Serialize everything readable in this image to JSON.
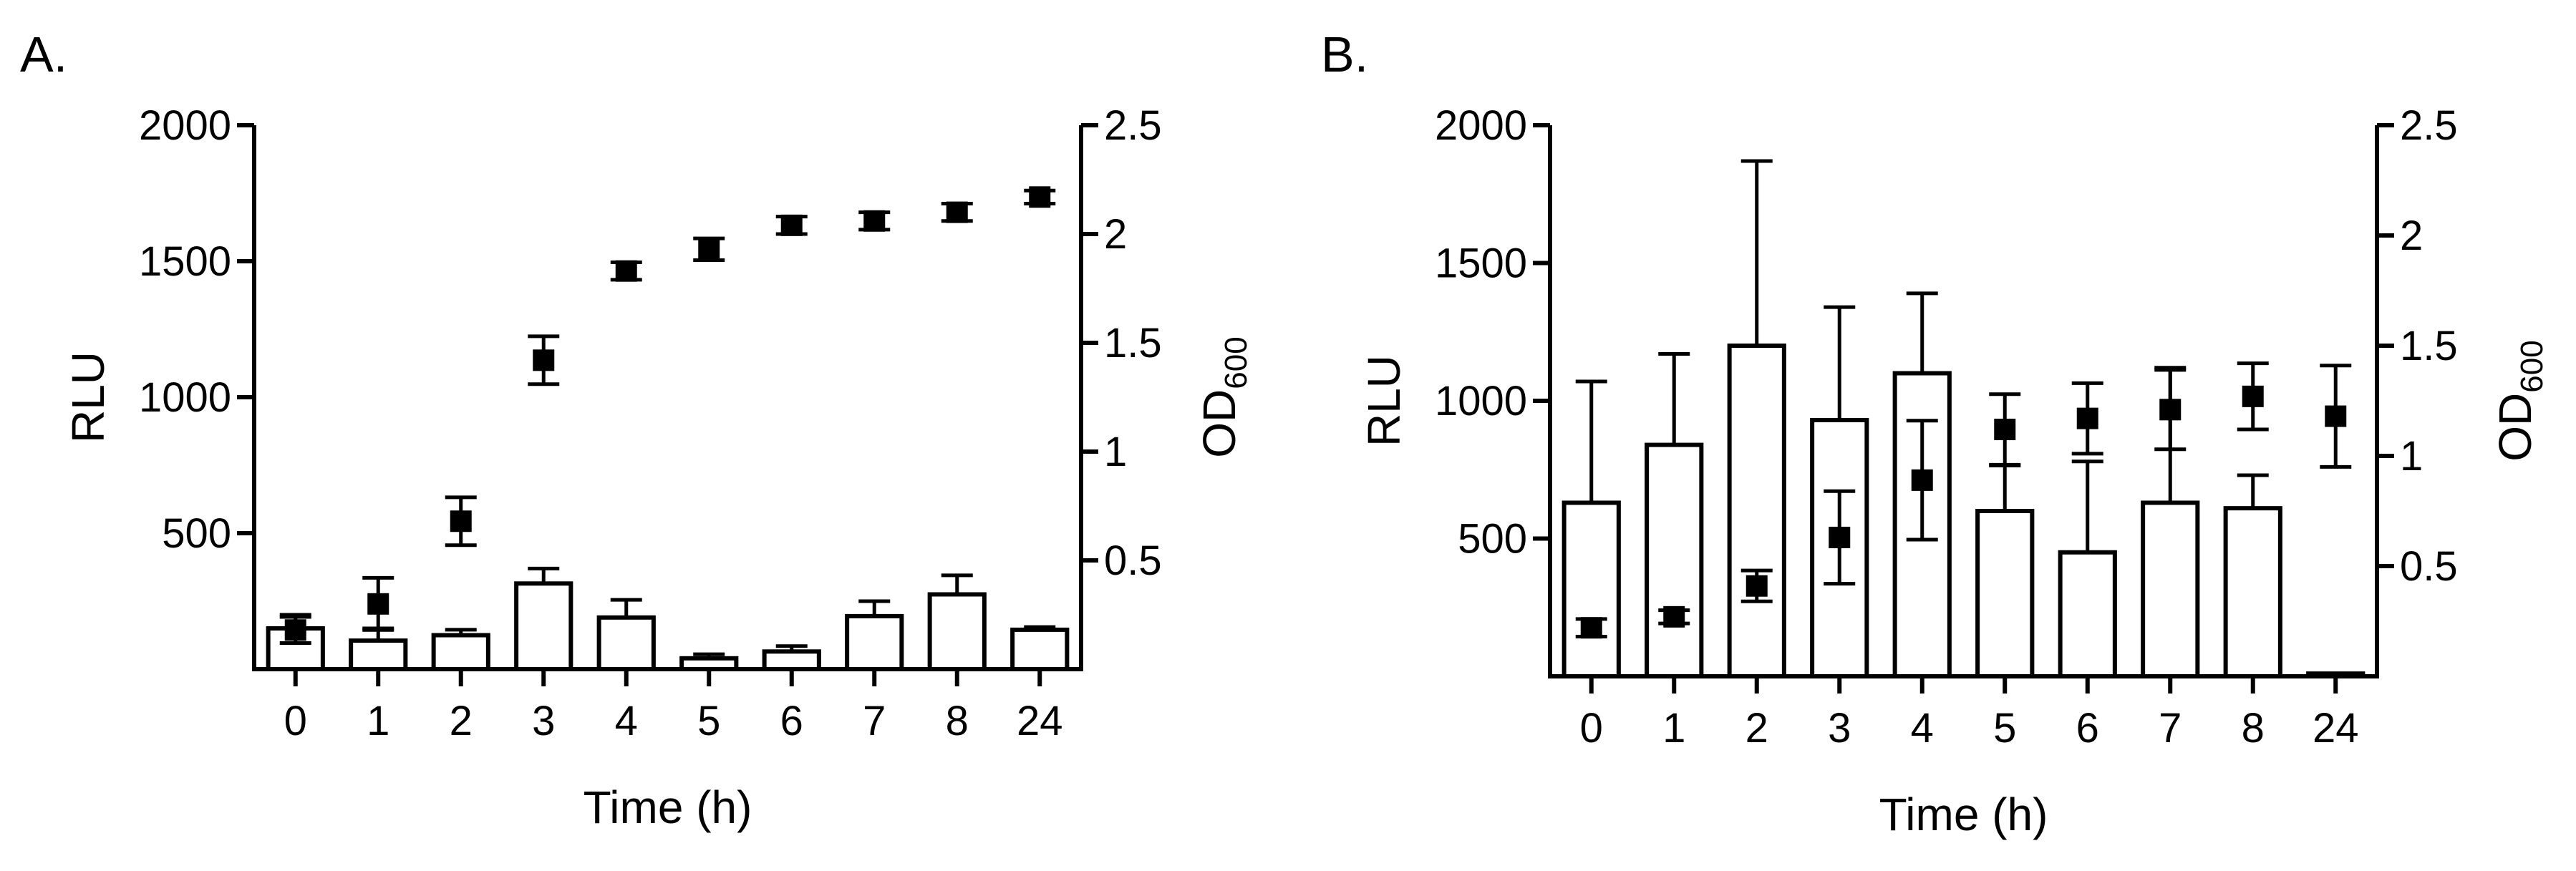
{
  "chart_data": [
    {
      "panel_label": "A.",
      "type": "bar+scatter",
      "categories": [
        "0",
        "1",
        "2",
        "3",
        "4",
        "5",
        "6",
        "7",
        "8",
        "24"
      ],
      "xlabel": "Time (h)",
      "ylabel": "RLU",
      "y2label": "OD",
      "y2label_sub": "600",
      "ylim": [
        0,
        2000
      ],
      "y2lim": [
        0,
        2.5
      ],
      "yticks": [
        500,
        1000,
        1500,
        2000
      ],
      "y2ticks": [
        0.5,
        1.0,
        1.5,
        2.0,
        2.5
      ],
      "grid": false,
      "series": [
        {
          "axis": "left",
          "style": "bar",
          "values": [
            150,
            105,
            125,
            315,
            190,
            40,
            65,
            195,
            275,
            145
          ],
          "errors": [
            50,
            45,
            20,
            55,
            65,
            15,
            20,
            55,
            70,
            10
          ]
        },
        {
          "axis": "right",
          "style": "square-marker",
          "values": [
            0.18,
            0.3,
            0.68,
            1.42,
            1.83,
            1.93,
            2.04,
            2.06,
            2.1,
            2.17
          ],
          "errors": [
            0.06,
            0.12,
            0.11,
            0.11,
            0.04,
            0.05,
            0.04,
            0.04,
            0.04,
            0.03
          ]
        }
      ]
    },
    {
      "panel_label": "B.",
      "type": "bar+scatter",
      "categories": [
        "0",
        "1",
        "2",
        "3",
        "4",
        "5",
        "6",
        "7",
        "8",
        "24"
      ],
      "xlabel": "Time (h)",
      "ylabel": "RLU",
      "y2label": "OD",
      "y2label_sub": "600",
      "ylim": [
        0,
        2000
      ],
      "y2lim": [
        0,
        2.5
      ],
      "yticks": [
        500,
        1000,
        1500,
        2000
      ],
      "y2ticks": [
        0.5,
        1.0,
        1.5,
        2.0,
        2.5
      ],
      "grid": false,
      "series": [
        {
          "axis": "left",
          "style": "bar",
          "values": [
            630,
            840,
            1200,
            930,
            1100,
            600,
            450,
            630,
            610,
            10
          ],
          "errors": [
            440,
            330,
            670,
            410,
            290,
            165,
            330,
            490,
            120,
            0
          ]
        },
        {
          "axis": "right",
          "style": "square-marker",
          "values": [
            0.22,
            0.27,
            0.41,
            0.63,
            0.89,
            1.12,
            1.17,
            1.21,
            1.27,
            1.18
          ],
          "errors": [
            0.04,
            0.03,
            0.07,
            0.21,
            0.27,
            0.16,
            0.16,
            0.18,
            0.15,
            0.23
          ]
        }
      ]
    }
  ]
}
